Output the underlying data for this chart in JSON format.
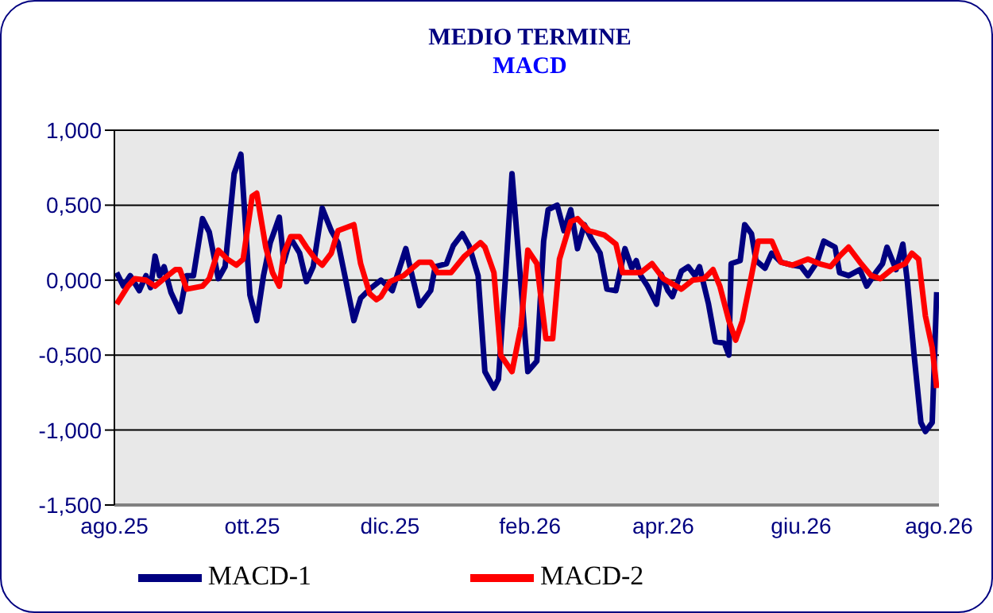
{
  "chart_data": {
    "type": "line",
    "title": "MEDIO TERMINE",
    "subtitle": "MACD",
    "xlim": [
      "2025-08-01",
      "2026-08-01"
    ],
    "xticks": [
      {
        "value": "2025-08-01",
        "label": "ago.25"
      },
      {
        "value": "2025-10-01",
        "label": "ott.25"
      },
      {
        "value": "2025-12-01",
        "label": "dic.25"
      },
      {
        "value": "2026-02-01",
        "label": "feb.26"
      },
      {
        "value": "2026-04-01",
        "label": "apr.26"
      },
      {
        "value": "2026-06-01",
        "label": "giu.26"
      },
      {
        "value": "2026-08-01",
        "label": "ago.26"
      }
    ],
    "ylim": [
      -1.5,
      1
    ],
    "yticks": [
      {
        "value": -1.5,
        "label": "-1,500"
      },
      {
        "value": -1,
        "label": "-1,000"
      },
      {
        "value": -0.5,
        "label": "-0,500"
      },
      {
        "value": 0,
        "label": "0,000"
      },
      {
        "value": 0.5,
        "label": "0,500"
      },
      {
        "value": 1,
        "label": "1,000"
      }
    ],
    "grid": "y",
    "legend": "bottom",
    "series": [
      {
        "name": "MACD-1",
        "color": "#000080",
        "x": [
          "2025-08-02",
          "2025-08-05",
          "2025-08-08",
          "2025-08-12",
          "2025-08-15",
          "2025-08-17",
          "2025-08-19",
          "2025-08-21",
          "2025-08-23",
          "2025-08-26",
          "2025-08-30",
          "2025-09-02",
          "2025-09-05",
          "2025-09-09",
          "2025-09-12",
          "2025-09-16",
          "2025-09-19",
          "2025-09-23",
          "2025-09-26",
          "2025-09-30",
          "2025-10-03",
          "2025-10-06",
          "2025-10-09",
          "2025-10-13",
          "2025-10-15",
          "2025-10-18",
          "2025-10-22",
          "2025-10-25",
          "2025-10-28",
          "2025-11-01",
          "2025-11-05",
          "2025-11-08",
          "2025-11-11",
          "2025-11-15",
          "2025-11-18",
          "2025-11-22",
          "2025-11-27",
          "2025-12-02",
          "2025-12-08",
          "2025-12-10",
          "2025-12-14",
          "2025-12-19",
          "2025-12-21",
          "2025-12-26",
          "2025-12-29",
          "2026-01-02",
          "2026-01-05",
          "2026-01-09",
          "2026-01-12",
          "2026-01-16",
          "2026-01-18",
          "2026-01-21",
          "2026-01-24",
          "2026-01-28",
          "2026-01-31",
          "2026-02-04",
          "2026-02-07",
          "2026-02-09",
          "2026-02-13",
          "2026-02-16",
          "2026-02-19",
          "2026-02-22",
          "2026-02-25",
          "2026-02-28",
          "2026-03-04",
          "2026-03-07",
          "2026-03-11",
          "2026-03-15",
          "2026-03-18",
          "2026-03-20",
          "2026-03-22",
          "2026-03-25",
          "2026-03-29",
          "2026-03-31",
          "2026-04-03",
          "2026-04-05",
          "2026-04-09",
          "2026-04-12",
          "2026-04-15",
          "2026-04-17",
          "2026-04-21",
          "2026-04-24",
          "2026-04-28",
          "2026-04-30",
          "2026-05-01",
          "2026-05-05",
          "2026-05-07",
          "2026-05-10",
          "2026-05-12",
          "2026-05-16",
          "2026-05-19",
          "2026-05-23",
          "2026-05-28",
          "2026-06-01",
          "2026-06-04",
          "2026-06-08",
          "2026-06-11",
          "2026-06-16",
          "2026-06-18",
          "2026-06-22",
          "2026-06-27",
          "2026-06-30",
          "2026-07-04",
          "2026-07-07",
          "2026-07-09",
          "2026-07-13",
          "2026-07-16",
          "2026-07-18",
          "2026-07-21",
          "2026-07-24",
          "2026-07-26",
          "2026-07-29",
          "2026-07-31"
        ],
        "values": [
          0.05,
          -0.04,
          0.03,
          -0.07,
          0.03,
          -0.05,
          0.16,
          0.03,
          0.09,
          -0.08,
          -0.21,
          0.03,
          0.03,
          0.41,
          0.32,
          0.01,
          0.09,
          0.71,
          0.84,
          -0.1,
          -0.27,
          0.03,
          0.25,
          0.42,
          0.12,
          0.28,
          0.18,
          -0.01,
          0.09,
          0.48,
          0.33,
          0.25,
          0.03,
          -0.27,
          -0.12,
          -0.06,
          0.0,
          -0.07,
          0.21,
          0.08,
          -0.17,
          -0.07,
          0.09,
          0.11,
          0.23,
          0.31,
          0.23,
          0.03,
          -0.61,
          -0.72,
          -0.66,
          0.0,
          0.71,
          -0.04,
          -0.61,
          -0.54,
          0.26,
          0.47,
          0.5,
          0.33,
          0.47,
          0.21,
          0.37,
          0.28,
          0.18,
          -0.06,
          -0.07,
          0.21,
          0.08,
          0.13,
          0.03,
          -0.04,
          -0.16,
          0.04,
          -0.07,
          -0.11,
          0.06,
          0.09,
          0.03,
          0.09,
          -0.16,
          -0.41,
          -0.42,
          -0.5,
          0.11,
          0.13,
          0.37,
          0.31,
          0.13,
          0.08,
          0.18,
          0.12,
          0.1,
          0.09,
          0.03,
          0.12,
          0.26,
          0.22,
          0.05,
          0.03,
          0.07,
          -0.04,
          0.05,
          0.11,
          0.22,
          0.07,
          0.24,
          -0.01,
          -0.5,
          -0.95,
          -1.01,
          -0.95,
          -0.08
        ]
      },
      {
        "name": "MACD-2",
        "color": "#ff0000",
        "x": [
          "2025-08-02",
          "2025-08-07",
          "2025-08-10",
          "2025-08-15",
          "2025-08-19",
          "2025-08-23",
          "2025-08-28",
          "2025-08-30",
          "2025-09-02",
          "2025-09-09",
          "2025-09-12",
          "2025-09-16",
          "2025-09-20",
          "2025-09-24",
          "2025-09-27",
          "2025-10-01",
          "2025-10-03",
          "2025-10-07",
          "2025-10-10",
          "2025-10-13",
          "2025-10-15",
          "2025-10-18",
          "2025-10-22",
          "2025-10-25",
          "2025-10-29",
          "2025-11-01",
          "2025-11-05",
          "2025-11-08",
          "2025-11-15",
          "2025-11-18",
          "2025-11-22",
          "2025-11-25",
          "2025-11-27",
          "2025-12-01",
          "2025-12-07",
          "2025-12-14",
          "2025-12-19",
          "2025-12-22",
          "2025-12-28",
          "2026-01-03",
          "2026-01-10",
          "2026-01-12",
          "2026-01-16",
          "2026-01-19",
          "2026-01-24",
          "2026-01-28",
          "2026-01-31",
          "2026-02-04",
          "2026-02-08",
          "2026-02-11",
          "2026-02-14",
          "2026-02-19",
          "2026-02-22",
          "2026-02-27",
          "2026-03-06",
          "2026-03-11",
          "2026-03-14",
          "2026-03-19",
          "2026-03-22",
          "2026-03-27",
          "2026-04-01",
          "2026-04-09",
          "2026-04-14",
          "2026-04-19",
          "2026-04-23",
          "2026-04-26",
          "2026-04-30",
          "2026-05-03",
          "2026-05-06",
          "2026-05-10",
          "2026-05-13",
          "2026-05-19",
          "2026-05-23",
          "2026-05-28",
          "2026-06-04",
          "2026-06-09",
          "2026-06-14",
          "2026-06-18",
          "2026-06-22",
          "2026-06-27",
          "2026-07-02",
          "2026-07-06",
          "2026-07-11",
          "2026-07-17",
          "2026-07-20",
          "2026-07-23",
          "2026-07-26",
          "2026-07-29",
          "2026-07-31"
        ],
        "values": [
          -0.16,
          -0.04,
          0.01,
          0.0,
          -0.04,
          0.01,
          0.07,
          0.07,
          -0.06,
          -0.04,
          0.01,
          0.2,
          0.14,
          0.1,
          0.14,
          0.56,
          0.58,
          0.22,
          0.05,
          -0.04,
          0.18,
          0.29,
          0.29,
          0.22,
          0.14,
          0.1,
          0.18,
          0.33,
          0.37,
          0.11,
          -0.09,
          -0.13,
          -0.11,
          -0.01,
          0.03,
          0.12,
          0.12,
          0.05,
          0.05,
          0.16,
          0.25,
          0.22,
          0.05,
          -0.5,
          -0.61,
          -0.31,
          0.2,
          0.11,
          -0.39,
          -0.39,
          0.14,
          0.39,
          0.41,
          0.33,
          0.3,
          0.24,
          0.05,
          0.05,
          0.05,
          0.11,
          0.01,
          -0.06,
          0.0,
          0.01,
          0.07,
          -0.04,
          -0.27,
          -0.4,
          -0.27,
          0.03,
          0.26,
          0.26,
          0.12,
          0.1,
          0.14,
          0.11,
          0.09,
          0.16,
          0.22,
          0.12,
          0.03,
          0.01,
          0.07,
          0.11,
          0.18,
          0.14,
          -0.24,
          -0.45,
          -0.72
        ]
      }
    ]
  }
}
